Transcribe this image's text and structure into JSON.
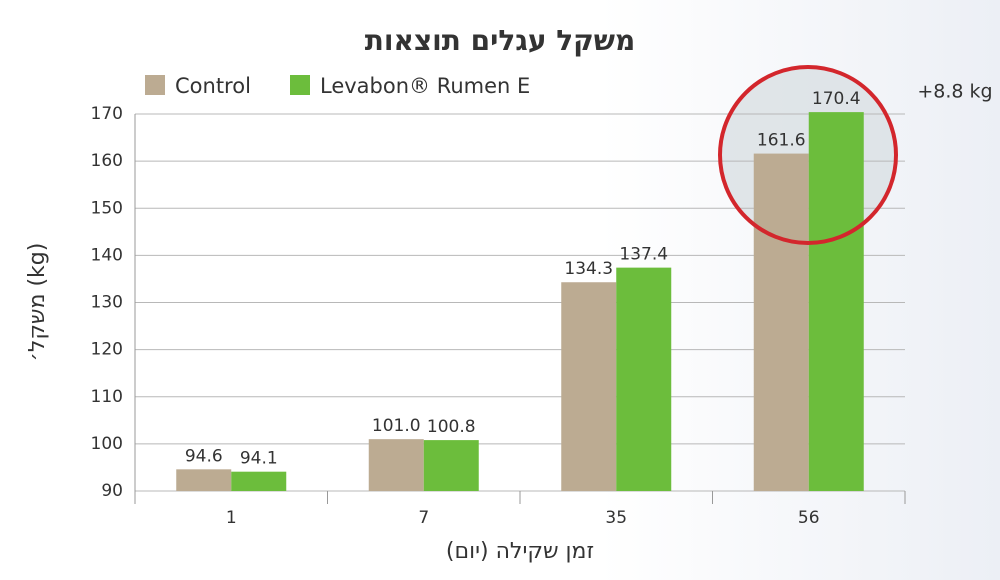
{
  "chart_data": {
    "type": "bar",
    "title": "משקל עגלים תוצאות",
    "x_label": "זמן שקילה (יום)",
    "y_label": "משקל׳ (kg)",
    "annotation": "+8.8 kg",
    "categories": [
      "1",
      "7",
      "35",
      "56"
    ],
    "series": [
      {
        "name": "Control",
        "color": "#bcab92",
        "values": [
          94.6,
          101.0,
          134.3,
          161.6
        ],
        "value_labels": [
          "94.6",
          "101.0",
          "134.3",
          "161.6"
        ]
      },
      {
        "name": "Levabon® Rumen E",
        "color": "#6cbd3c",
        "values": [
          94.1,
          100.8,
          137.4,
          170.4
        ]
      }
    ],
    "ylim": [
      90,
      170
    ],
    "yticks": [
      90,
      100,
      110,
      120,
      130,
      140,
      150,
      160,
      170
    ],
    "grid": true
  }
}
